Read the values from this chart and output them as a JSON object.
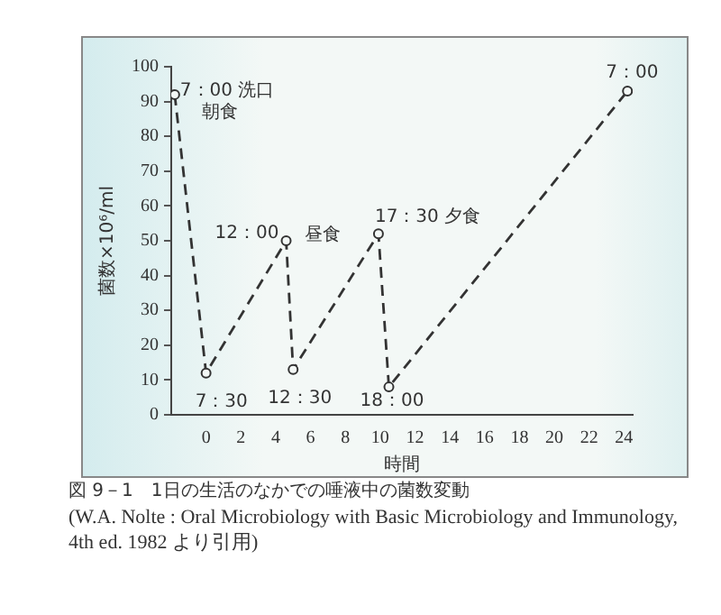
{
  "chart_data": {
    "type": "line",
    "title": "図 9－1　1日の生活のなかでの唾液中の菌数変動",
    "subtitle": "(W.A. Nolte : Oral Microbiology with Basic Microbiology and Immunology, 4th ed. 1982 より引用)",
    "xlabel": "時間",
    "ylabel": "菌数×10⁶/ml",
    "x": [
      -1.8,
      0,
      4.6,
      5.0,
      9.9,
      10.5,
      24.2
    ],
    "values": [
      92,
      12,
      50,
      13,
      52,
      8,
      93
    ],
    "color": "#333333",
    "marker": "circle",
    "line_style": "dashed",
    "xlim": [
      -2,
      24.5
    ],
    "xticks": [
      0,
      2,
      4,
      6,
      8,
      10,
      12,
      14,
      16,
      18,
      20,
      22,
      24
    ],
    "ylim": [
      0,
      100
    ],
    "yticks": [
      0,
      10,
      20,
      30,
      40,
      50,
      60,
      70,
      80,
      90,
      100
    ],
    "grid": false,
    "legend": false,
    "annotations": [
      {
        "text": "7：00 洗口",
        "x": -1.8,
        "y": 92
      },
      {
        "text": "朝食",
        "x": -1.8,
        "y": 92
      },
      {
        "text": "7：30",
        "x": 0,
        "y": 12
      },
      {
        "text": "12：00",
        "x": 4.6,
        "y": 50
      },
      {
        "text": "昼食",
        "x": 4.6,
        "y": 50
      },
      {
        "text": "12：30",
        "x": 5.0,
        "y": 13
      },
      {
        "text": "17：30 夕食",
        "x": 9.9,
        "y": 52
      },
      {
        "text": "18：00",
        "x": 10.5,
        "y": 8
      },
      {
        "text": "7：00",
        "x": 24.2,
        "y": 93
      }
    ]
  }
}
